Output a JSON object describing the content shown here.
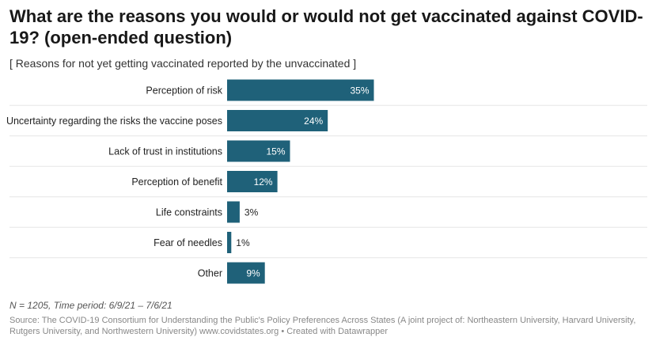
{
  "title": "What are the reasons you would or would not get vaccinated against COVID-19? (open-ended question)",
  "subtitle": "[ Reasons for not yet getting vaccinated reported by the unvaccinated ]",
  "notes": "N = 1205, Time period: 6/9/21 – 7/6/21",
  "footer": {
    "source": "Source: The COVID-19 Consortium for Understanding the Public's Policy Preferences Across States (A joint project of: Northeastern University, Harvard University, Rutgers University, and Northwestern University) www.covidstates.org",
    "separator": " • ",
    "credit": "Created with Datawrapper"
  },
  "colors": {
    "bar": "#1f6179",
    "grid": "#e5e5e5"
  },
  "chart_data": {
    "type": "bar",
    "orientation": "horizontal",
    "categories": [
      "Perception of risk",
      "Uncertainty regarding the risks the vaccine poses",
      "Lack of trust in institutions",
      "Perception of benefit",
      "Life constraints",
      "Fear of needles",
      "Other"
    ],
    "values": [
      35,
      24,
      15,
      12,
      3,
      1,
      9
    ],
    "value_labels": [
      "35%",
      "24%",
      "15%",
      "12%",
      "3%",
      "1%",
      "9%"
    ],
    "unit": "%",
    "xlim": [
      0,
      100
    ],
    "grid": false,
    "legend": "none"
  }
}
